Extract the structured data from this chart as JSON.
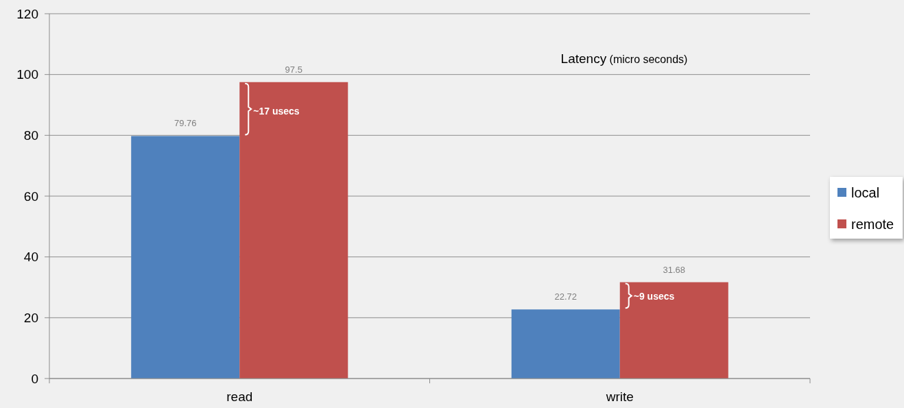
{
  "chart_data": {
    "type": "bar",
    "title": "Latency (micro seconds)",
    "categories": [
      "read",
      "write"
    ],
    "series": [
      {
        "name": "local",
        "color": "#4f81bd",
        "values": [
          79.76,
          22.72
        ]
      },
      {
        "name": "remote",
        "color": "#c0504d",
        "values": [
          97.5,
          31.68
        ]
      }
    ],
    "ylim": [
      0,
      120
    ],
    "yticks": [
      0,
      20,
      40,
      60,
      80,
      100,
      120
    ],
    "grid": "y",
    "legend": "right",
    "data_labels": true,
    "annotations": [
      {
        "text": "~17 usecs",
        "x": "read",
        "y": 88
      },
      {
        "text": "~9 usecs",
        "x": "write",
        "y": 27
      }
    ]
  }
}
